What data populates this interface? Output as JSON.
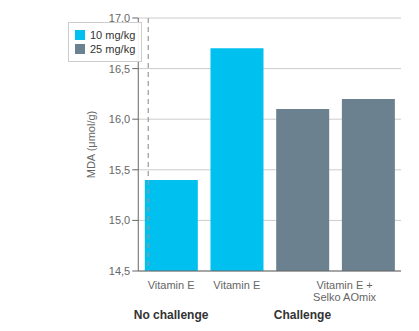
{
  "chart_data": {
    "type": "bar",
    "ylabel": "MDA (μmol/g)",
    "categories": [
      "Vitamin E",
      "Vitamin E",
      "Vitamin E +\nSelko AOmix",
      null
    ],
    "series": [
      {
        "name": "10 mg/kg",
        "color": "#00c0f0",
        "values": [
          15.4,
          16.7,
          null,
          null
        ]
      },
      {
        "name": "25 mg/kg",
        "color": "#6b8190",
        "values": [
          null,
          null,
          16.1,
          16.2
        ]
      }
    ],
    "annotations": [
      "No challenge",
      "Challenge"
    ],
    "ylim": [
      14.5,
      17.0
    ],
    "yticks": [
      {
        "value": 14.5,
        "label": "14,5"
      },
      {
        "value": 15.0,
        "label": "15,0"
      },
      {
        "value": 15.5,
        "label": "15,5"
      },
      {
        "value": 16.0,
        "label": "16,0"
      },
      {
        "value": 16.5,
        "label": "16,5"
      },
      {
        "value": 17.0,
        "label": "17,0"
      }
    ],
    "grid": true,
    "legend": "upper left"
  }
}
